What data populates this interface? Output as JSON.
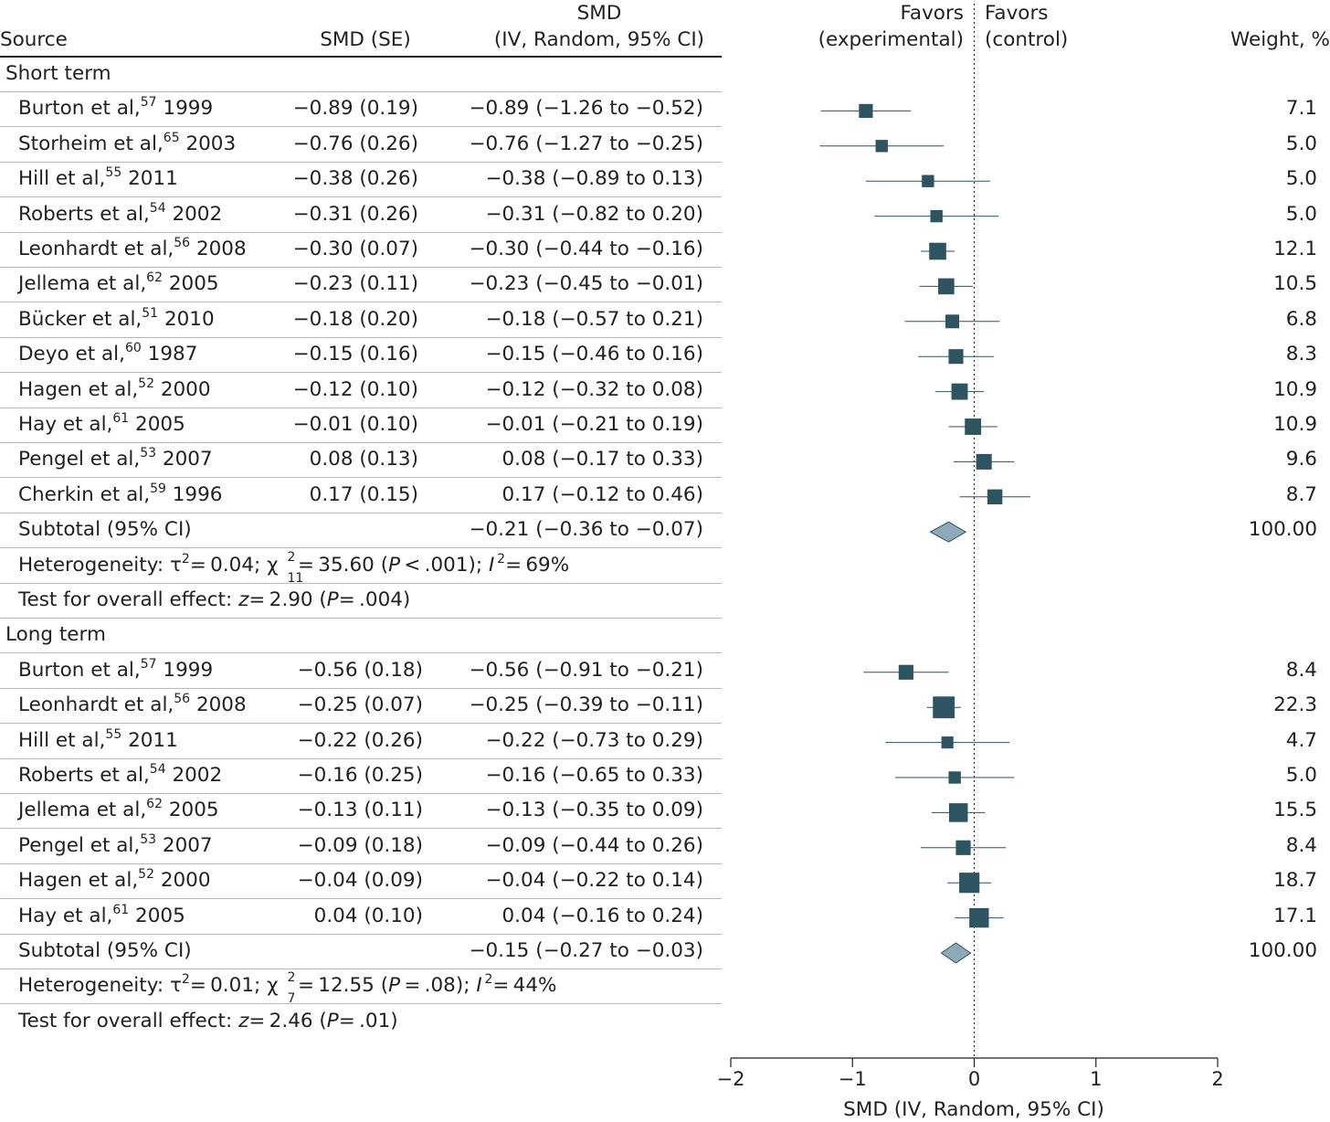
{
  "header": {
    "source": "Source",
    "smd_se": "SMD (SE)",
    "smd_ci_line1": "SMD",
    "smd_ci_line2": "(IV, Random, 95% CI)",
    "favors_exp_line1": "Favors",
    "favors_exp_line2": "(experimental)",
    "favors_ctrl_line1": "Favors",
    "favors_ctrl_line2": "(control)",
    "weight": "Weight, %"
  },
  "sections": [
    {
      "title": "Short term",
      "rows": [
        {
          "author": "Burton et al,",
          "ref": "57",
          "year": "1999",
          "smd_se": "−0.89 (0.19)",
          "ci": "−0.89 (−1.26 to −0.52)",
          "weight": "7.1"
        },
        {
          "author": "Storheim et al,",
          "ref": "65",
          "year": "2003",
          "smd_se": "−0.76 (0.26)",
          "ci": "−0.76 (−1.27 to −0.25)",
          "weight": "5.0"
        },
        {
          "author": "Hill et al,",
          "ref": "55",
          "year": "2011",
          "smd_se": "−0.38 (0.26)",
          "ci": "−0.38 (−0.89 to 0.13)",
          "weight": "5.0"
        },
        {
          "author": "Roberts et al,",
          "ref": "54",
          "year": "2002",
          "smd_se": "−0.31 (0.26)",
          "ci": "−0.31 (−0.82 to 0.20)",
          "weight": "5.0"
        },
        {
          "author": "Leonhardt et al,",
          "ref": "56",
          "year": "2008",
          "smd_se": "−0.30 (0.07)",
          "ci": "−0.30 (−0.44 to −0.16)",
          "weight": "12.1"
        },
        {
          "author": "Jellema et al,",
          "ref": "62",
          "year": "2005",
          "smd_se": "−0.23 (0.11)",
          "ci": "−0.23 (−0.45 to −0.01)",
          "weight": "10.5"
        },
        {
          "author": "Bücker et al,",
          "ref": "51",
          "year": "2010",
          "smd_se": "−0.18 (0.20)",
          "ci": "−0.18 (−0.57 to 0.21)",
          "weight": "6.8"
        },
        {
          "author": "Deyo et al,",
          "ref": "60",
          "year": "1987",
          "smd_se": "−0.15 (0.16)",
          "ci": "−0.15 (−0.46 to 0.16)",
          "weight": "8.3"
        },
        {
          "author": "Hagen et al,",
          "ref": "52",
          "year": "2000",
          "smd_se": "−0.12 (0.10)",
          "ci": "−0.12 (−0.32 to 0.08)",
          "weight": "10.9"
        },
        {
          "author": "Hay et al,",
          "ref": "61",
          "year": "2005",
          "smd_se": "−0.01 (0.10)",
          "ci": "−0.01 (−0.21 to 0.19)",
          "weight": "10.9"
        },
        {
          "author": "Pengel et al,",
          "ref": "53",
          "year": "2007",
          "smd_se": "0.08 (0.13)",
          "ci": "0.08 (−0.17 to 0.33)",
          "weight": "9.6"
        },
        {
          "author": "Cherkin et al,",
          "ref": "59",
          "year": "1996",
          "smd_se": "0.17 (0.15)",
          "ci": "0.17 (−0.12 to 0.46)",
          "weight": "8.7"
        }
      ],
      "subtotal": {
        "label": "Subtotal (95% CI)",
        "ci": "−0.21 (−0.36 to −0.07)",
        "weight": "100.00"
      },
      "heterogeneity": {
        "prefix": "Heterogeneity: τ",
        "tau2": "= 0.04; χ",
        "df": "11",
        "chi2": "= 35.60 (",
        "p": "P",
        "p_val": " < .001); ",
        "i": "I",
        "i2": "= 69%"
      },
      "overall": {
        "prefix": "Test for overall effect: ",
        "z": "z",
        "z_val": "= 2.90 (",
        "p": "P",
        "p_val": "= .004)"
      }
    },
    {
      "title": "Long term",
      "rows": [
        {
          "author": "Burton et al,",
          "ref": "57",
          "year": "1999",
          "smd_se": "−0.56 (0.18)",
          "ci": "−0.56 (−0.91 to −0.21)",
          "weight": "8.4"
        },
        {
          "author": "Leonhardt et al,",
          "ref": "56",
          "year": "2008",
          "smd_se": "−0.25 (0.07)",
          "ci": "−0.25 (−0.39 to −0.11)",
          "weight": "22.3"
        },
        {
          "author": "Hill et al,",
          "ref": "55",
          "year": "2011",
          "smd_se": "−0.22 (0.26)",
          "ci": "−0.22 (−0.73 to 0.29)",
          "weight": "4.7"
        },
        {
          "author": "Roberts et al,",
          "ref": "54",
          "year": "2002",
          "smd_se": "−0.16 (0.25)",
          "ci": "−0.16 (−0.65 to 0.33)",
          "weight": "5.0"
        },
        {
          "author": "Jellema et al,",
          "ref": "62",
          "year": "2005",
          "smd_se": "−0.13 (0.11)",
          "ci": "−0.13 (−0.35 to 0.09)",
          "weight": "15.5"
        },
        {
          "author": "Pengel et al,",
          "ref": "53",
          "year": "2007",
          "smd_se": "−0.09 (0.18)",
          "ci": "−0.09 (−0.44 to 0.26)",
          "weight": "8.4"
        },
        {
          "author": "Hagen et al,",
          "ref": "52",
          "year": "2000",
          "smd_se": "−0.04 (0.09)",
          "ci": "−0.04 (−0.22 to 0.14)",
          "weight": "18.7"
        },
        {
          "author": "Hay et al,",
          "ref": "61",
          "year": "2005",
          "smd_se": "0.04 (0.10)",
          "ci": "0.04 (−0.16 to 0.24)",
          "weight": "17.1"
        }
      ],
      "subtotal": {
        "label": "Subtotal (95% CI)",
        "ci": "−0.15 (−0.27 to −0.03)",
        "weight": "100.00"
      },
      "heterogeneity": {
        "prefix": "Heterogeneity: τ",
        "tau2": "= 0.01; χ",
        "df": "7",
        "chi2": "= 12.55 (",
        "p": "P",
        "p_val": " = .08); ",
        "i": "I",
        "i2": "= 44%"
      },
      "overall": {
        "prefix": "Test for overall effect: ",
        "z": "z",
        "z_val": "= 2.46 (",
        "p": "P",
        "p_val": "= .01)"
      }
    }
  ],
  "chart_data": {
    "type": "forest",
    "xlabel": "SMD (IV, Random, 95% CI)",
    "xlim": [
      -2,
      2
    ],
    "ticks": [
      -2,
      -1,
      0,
      1,
      2
    ],
    "tick_labels": [
      "−2",
      "−1",
      "0",
      "1",
      "2"
    ],
    "reference_line": 0,
    "marker_color": "#2e5361",
    "diamond_color": "#8eaab8",
    "series": [
      {
        "name": "Short term",
        "points": [
          {
            "est": -0.89,
            "lo": -1.26,
            "hi": -0.52,
            "weight": 7.1
          },
          {
            "est": -0.76,
            "lo": -1.27,
            "hi": -0.25,
            "weight": 5.0
          },
          {
            "est": -0.38,
            "lo": -0.89,
            "hi": 0.13,
            "weight": 5.0
          },
          {
            "est": -0.31,
            "lo": -0.82,
            "hi": 0.2,
            "weight": 5.0
          },
          {
            "est": -0.3,
            "lo": -0.44,
            "hi": -0.16,
            "weight": 12.1
          },
          {
            "est": -0.23,
            "lo": -0.45,
            "hi": -0.01,
            "weight": 10.5
          },
          {
            "est": -0.18,
            "lo": -0.57,
            "hi": 0.21,
            "weight": 6.8
          },
          {
            "est": -0.15,
            "lo": -0.46,
            "hi": 0.16,
            "weight": 8.3
          },
          {
            "est": -0.12,
            "lo": -0.32,
            "hi": 0.08,
            "weight": 10.9
          },
          {
            "est": -0.01,
            "lo": -0.21,
            "hi": 0.19,
            "weight": 10.9
          },
          {
            "est": 0.08,
            "lo": -0.17,
            "hi": 0.33,
            "weight": 9.6
          },
          {
            "est": 0.17,
            "lo": -0.12,
            "hi": 0.46,
            "weight": 8.7
          }
        ],
        "subtotal": {
          "est": -0.21,
          "lo": -0.36,
          "hi": -0.07
        }
      },
      {
        "name": "Long term",
        "points": [
          {
            "est": -0.56,
            "lo": -0.91,
            "hi": -0.21,
            "weight": 8.4
          },
          {
            "est": -0.25,
            "lo": -0.39,
            "hi": -0.11,
            "weight": 22.3
          },
          {
            "est": -0.22,
            "lo": -0.73,
            "hi": 0.29,
            "weight": 4.7
          },
          {
            "est": -0.16,
            "lo": -0.65,
            "hi": 0.33,
            "weight": 5.0
          },
          {
            "est": -0.13,
            "lo": -0.35,
            "hi": 0.09,
            "weight": 15.5
          },
          {
            "est": -0.09,
            "lo": -0.44,
            "hi": 0.26,
            "weight": 8.4
          },
          {
            "est": -0.04,
            "lo": -0.22,
            "hi": 0.14,
            "weight": 18.7
          },
          {
            "est": 0.04,
            "lo": -0.16,
            "hi": 0.24,
            "weight": 17.1
          }
        ],
        "subtotal": {
          "est": -0.15,
          "lo": -0.27,
          "hi": -0.03
        }
      }
    ]
  }
}
